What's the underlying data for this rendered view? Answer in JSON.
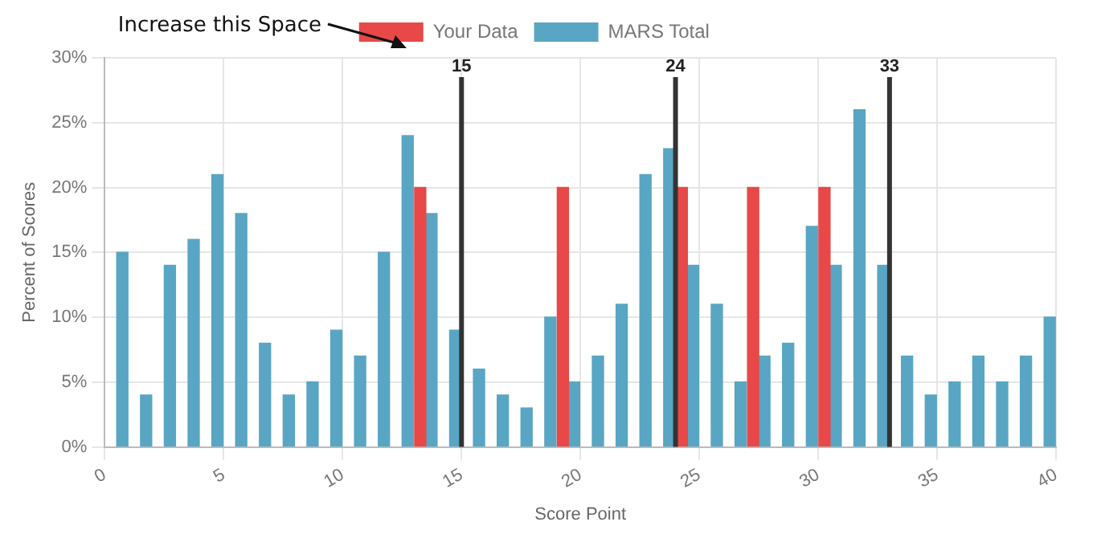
{
  "chart_data": {
    "type": "bar",
    "xlabel": "Score Point",
    "ylabel": "Percent of Scores",
    "annotations": [
      "Increase this Space"
    ],
    "x": [
      0.5,
      1.5,
      2.5,
      3.5,
      4.5,
      5.5,
      6.5,
      7.5,
      8.5,
      9.5,
      10.5,
      11.5,
      12.5,
      13.5,
      14.5,
      15.5,
      16.5,
      17.5,
      18.5,
      19.5,
      20.5,
      21.5,
      22.5,
      23.5,
      24.5,
      25.5,
      26.5,
      27.5,
      28.5,
      29.5,
      30.5,
      31.5,
      32.5,
      33.5,
      34.5,
      35.5,
      36.5,
      37.5,
      38.5,
      39.5
    ],
    "series": [
      {
        "name": "Your Data",
        "color": "#e84848",
        "values": [
          null,
          null,
          null,
          null,
          null,
          null,
          null,
          null,
          null,
          null,
          null,
          null,
          null,
          20,
          null,
          null,
          null,
          null,
          null,
          20,
          null,
          null,
          null,
          null,
          20,
          null,
          null,
          20,
          null,
          null,
          20,
          null,
          null,
          null,
          null,
          null,
          null,
          null,
          null,
          null
        ]
      },
      {
        "name": "MARS Total",
        "color": "#58a6c3",
        "values": [
          15,
          4,
          14,
          16,
          21,
          18,
          8,
          4,
          5,
          9,
          7,
          15,
          24,
          18,
          9,
          6,
          4,
          3,
          10,
          5,
          7,
          11,
          21,
          23,
          14,
          11,
          5,
          7,
          8,
          17,
          14,
          26,
          14,
          7,
          4,
          5,
          7,
          5,
          7,
          10
        ]
      }
    ],
    "xlim": [
      0,
      40
    ],
    "xticks": [
      0,
      5,
      10,
      15,
      20,
      25,
      30,
      35,
      40
    ],
    "ylim": [
      0,
      30
    ],
    "yticks": [
      {
        "value": 0,
        "label": "0%"
      },
      {
        "value": 5,
        "label": "5%"
      },
      {
        "value": 10,
        "label": "10%"
      },
      {
        "value": 15,
        "label": "15%"
      },
      {
        "value": 20,
        "label": "20%"
      },
      {
        "value": 25,
        "label": "25%"
      },
      {
        "value": 30,
        "label": "30%"
      }
    ],
    "ref_lines": [
      {
        "axis": "x",
        "value": 15,
        "label": "15",
        "color": "#333333"
      },
      {
        "axis": "x",
        "value": 24,
        "label": "24",
        "color": "#333333"
      },
      {
        "axis": "x",
        "value": 33,
        "label": "33",
        "color": "#333333"
      }
    ],
    "grid": true,
    "legend": "top"
  }
}
